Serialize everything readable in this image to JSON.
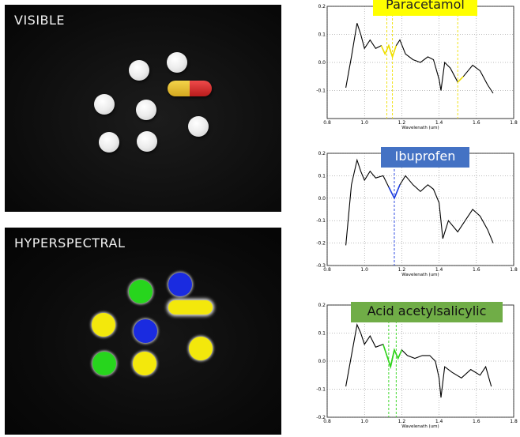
{
  "panels": {
    "visible_title": "VISIBLE",
    "hyper_title": "HYPERSPECTRAL"
  },
  "colors": {
    "paracetamol": "#f3e80c",
    "ibuprofen": "#1a2be0",
    "acid_acetylsalicylic": "#27d51d",
    "label_yellow": "#ffff00",
    "label_blue": "#4472c4",
    "label_green": "#70ad47"
  },
  "chart_data": [
    {
      "type": "line",
      "label": "Paracetamol",
      "xlabel": "Wavelenath (um)",
      "xlim": [
        0.8,
        1.8
      ],
      "ylim": [
        -0.2,
        0.2
      ],
      "x_ticks": [
        "0.8",
        "1.0",
        "1.2",
        "1.4",
        "1.6",
        "1.8"
      ],
      "y_ticks": [
        "0.2",
        "0.1",
        "0.0",
        "-0.1"
      ],
      "highlight_color": "yellow",
      "highlight_x": [
        1.12,
        1.15,
        1.5
      ],
      "spectrum": [
        [
          0.9,
          -0.09
        ],
        [
          0.93,
          0.02
        ],
        [
          0.96,
          0.14
        ],
        [
          0.98,
          0.1
        ],
        [
          1.0,
          0.05
        ],
        [
          1.03,
          0.08
        ],
        [
          1.06,
          0.05
        ],
        [
          1.09,
          0.06
        ],
        [
          1.11,
          0.03
        ],
        [
          1.13,
          0.06
        ],
        [
          1.15,
          0.02
        ],
        [
          1.17,
          0.06
        ],
        [
          1.19,
          0.08
        ],
        [
          1.22,
          0.03
        ],
        [
          1.26,
          0.01
        ],
        [
          1.3,
          0.0
        ],
        [
          1.34,
          0.02
        ],
        [
          1.37,
          0.01
        ],
        [
          1.4,
          -0.06
        ],
        [
          1.41,
          -0.1
        ],
        [
          1.43,
          0.0
        ],
        [
          1.46,
          -0.02
        ],
        [
          1.5,
          -0.07
        ],
        [
          1.53,
          -0.05
        ],
        [
          1.58,
          -0.01
        ],
        [
          1.62,
          -0.03
        ],
        [
          1.66,
          -0.08
        ],
        [
          1.69,
          -0.11
        ]
      ]
    },
    {
      "type": "line",
      "label": "Ibuprofen",
      "xlabel": "Wavelenath (um)",
      "xlim": [
        0.8,
        1.8
      ],
      "ylim": [
        -0.3,
        0.2
      ],
      "x_ticks": [
        "0.8",
        "1.0",
        "1.2",
        "1.4",
        "1.6",
        "1.8"
      ],
      "y_ticks": [
        "0.2",
        "0.1",
        "0.0",
        "-0.1",
        "-0.2",
        "-0.3"
      ],
      "highlight_color": "blue",
      "highlight_x": [
        1.16
      ],
      "spectrum": [
        [
          0.9,
          -0.21
        ],
        [
          0.93,
          0.06
        ],
        [
          0.96,
          0.17
        ],
        [
          0.98,
          0.12
        ],
        [
          1.0,
          0.08
        ],
        [
          1.03,
          0.12
        ],
        [
          1.06,
          0.09
        ],
        [
          1.1,
          0.1
        ],
        [
          1.13,
          0.05
        ],
        [
          1.16,
          0.0
        ],
        [
          1.19,
          0.06
        ],
        [
          1.22,
          0.1
        ],
        [
          1.26,
          0.06
        ],
        [
          1.3,
          0.03
        ],
        [
          1.34,
          0.06
        ],
        [
          1.37,
          0.04
        ],
        [
          1.4,
          -0.02
        ],
        [
          1.42,
          -0.18
        ],
        [
          1.45,
          -0.1
        ],
        [
          1.5,
          -0.15
        ],
        [
          1.54,
          -0.1
        ],
        [
          1.58,
          -0.05
        ],
        [
          1.62,
          -0.08
        ],
        [
          1.66,
          -0.14
        ],
        [
          1.69,
          -0.2
        ]
      ]
    },
    {
      "type": "line",
      "label": "Acid acetylsalicylic",
      "xlabel": "Wavelenath (um)",
      "xlim": [
        0.8,
        1.8
      ],
      "ylim": [
        -0.2,
        0.2
      ],
      "x_ticks": [
        "0.8",
        "1.0",
        "1.2",
        "1.4",
        "1.6",
        "1.8"
      ],
      "y_ticks": [
        "0.2",
        "0.1",
        "0.0",
        "-0.1",
        "-0.2"
      ],
      "highlight_color": "green",
      "highlight_x": [
        1.13,
        1.17
      ],
      "spectrum": [
        [
          0.9,
          -0.09
        ],
        [
          0.93,
          0.02
        ],
        [
          0.96,
          0.13
        ],
        [
          0.98,
          0.1
        ],
        [
          1.0,
          0.06
        ],
        [
          1.03,
          0.09
        ],
        [
          1.06,
          0.05
        ],
        [
          1.1,
          0.06
        ],
        [
          1.12,
          0.02
        ],
        [
          1.14,
          -0.02
        ],
        [
          1.16,
          0.04
        ],
        [
          1.18,
          0.01
        ],
        [
          1.2,
          0.04
        ],
        [
          1.23,
          0.02
        ],
        [
          1.27,
          0.01
        ],
        [
          1.31,
          0.02
        ],
        [
          1.35,
          0.02
        ],
        [
          1.38,
          0.0
        ],
        [
          1.4,
          -0.06
        ],
        [
          1.41,
          -0.13
        ],
        [
          1.43,
          -0.02
        ],
        [
          1.47,
          -0.04
        ],
        [
          1.52,
          -0.06
        ],
        [
          1.57,
          -0.03
        ],
        [
          1.62,
          -0.05
        ],
        [
          1.65,
          -0.02
        ],
        [
          1.68,
          -0.09
        ]
      ]
    }
  ]
}
